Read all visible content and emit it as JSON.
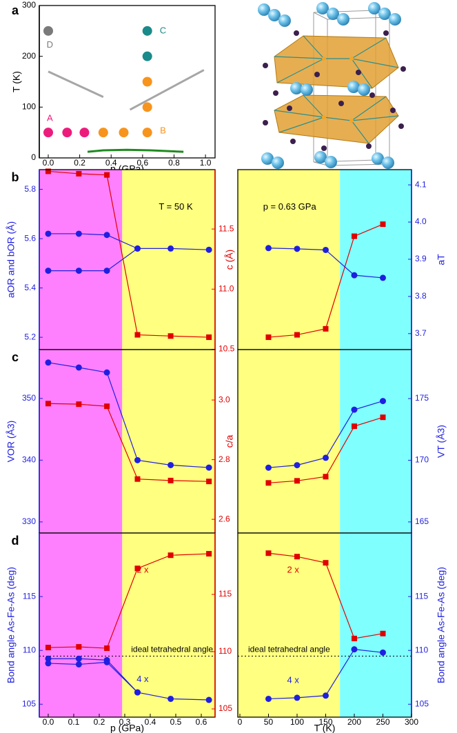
{
  "chart_data": [
    {
      "type": "scatter",
      "label": "a",
      "xlabel": "p (GPa)",
      "ylabel": "T (K)",
      "xlim": [
        -0.057,
        1.061
      ],
      "ylim": [
        0,
        300
      ],
      "xticks": [
        {
          "value": 0,
          "label": "0.0"
        },
        0.2,
        0.4,
        0.6,
        0.8,
        {
          "value": 1,
          "label": "1.0"
        }
      ],
      "yticks": [
        0,
        100,
        200,
        300
      ],
      "axis_colors": {
        "y": "#000000"
      },
      "marker_size": 7,
      "series": [
        {
          "color": "#ec1c7c",
          "x": [
            0,
            0.12,
            0.23
          ],
          "values": [
            50,
            50,
            50
          ]
        },
        {
          "color": "#f7941d",
          "x": [
            0.35,
            0.48,
            0.63,
            0.63,
            0.63
          ],
          "values": [
            50,
            50,
            50,
            100,
            150
          ]
        },
        {
          "color": "#1a8a8a",
          "x": [
            0.63,
            0.63
          ],
          "values": [
            200,
            250
          ]
        },
        {
          "color": "#7a7a7a",
          "x": [
            0
          ],
          "values": [
            250
          ]
        }
      ],
      "boundaries": [
        {
          "color": "#a6a6a6",
          "x": [
            0,
            0.35
          ],
          "y": [
            170,
            120
          ]
        },
        {
          "color": "#a6a6a6",
          "x": [
            0.52,
            0.99
          ],
          "y": [
            95,
            173
          ]
        },
        {
          "color": "#1f8a1f",
          "x": [
            0.25,
            0.35,
            0.5,
            0.65,
            0.86
          ],
          "y": [
            12,
            15,
            16,
            15,
            12
          ]
        }
      ],
      "annotations": [
        {
          "text": "A",
          "x": 0.01,
          "y": 77,
          "color": "#ec1c7c"
        },
        {
          "text": "B",
          "x": 0.73,
          "y": 53,
          "color": "#f7941d"
        },
        {
          "text": "C",
          "x": 0.73,
          "y": 250,
          "color": "#1a8a8a"
        },
        {
          "text": "D",
          "x": 0.01,
          "y": 222,
          "color": "#7a7a7a"
        }
      ]
    },
    {
      "type": "line",
      "label": "b",
      "xlim": [
        -0.035,
        0.654
      ],
      "x": [
        0,
        0.12,
        0.23,
        0.35,
        0.48,
        0.63
      ],
      "ylim": [
        5.15,
        5.88
      ],
      "yticks": [
        5.2,
        5.4,
        5.6,
        5.8
      ],
      "ylabel": "aOR and bOR (Å)",
      "y2lim": [
        10.497,
        11.994
      ],
      "y2ticks": [
        10.5,
        {
          "value": 11,
          "label": "11.0"
        },
        11.5
      ],
      "y2label": "c (Å)",
      "axis_colors": {
        "y": "#1f1fe0",
        "y2": "#e00000"
      },
      "bands": [
        {
          "from": -0.035,
          "to": 0.29,
          "color": "#ff80ff"
        },
        {
          "from": 0.29,
          "to": 0.654,
          "color": "#ffff80"
        }
      ],
      "series": [
        {
          "color": "#e00000",
          "marker": "square",
          "axis": "y2",
          "values": [
            11.98,
            11.96,
            11.95,
            10.62,
            10.61,
            10.6
          ]
        },
        {
          "color": "#1f1fe0",
          "marker": "circle",
          "values": [
            5.62,
            5.62,
            5.615,
            5.56,
            5.56,
            5.555
          ]
        },
        {
          "color": "#1f1fe0",
          "marker": "circle",
          "values": [
            5.47,
            5.47,
            5.47,
            5.56,
            null,
            null
          ]
        }
      ],
      "annotations": [
        {
          "text": "T = 50 K",
          "x": 0.5,
          "y": 5.728,
          "color": "#000000"
        }
      ]
    },
    {
      "type": "line",
      "xlim": [
        -3.6,
        300
      ],
      "x": [
        50,
        100,
        150,
        200,
        250
      ],
      "ylim": [
        10.497,
        11.994
      ],
      "y2lim": [
        3.657,
        4.141
      ],
      "y2ticks": [
        3.7,
        3.8,
        3.9,
        {
          "value": 4,
          "label": "4.0"
        },
        4.1
      ],
      "y2label": "aT",
      "axis_colors": {
        "y": "#e00000",
        "y2": "#1f1fe0"
      },
      "bands": [
        {
          "from": -3.6,
          "to": 175,
          "color": "#ffff80"
        },
        {
          "from": 175,
          "to": 300,
          "color": "#80ffff"
        }
      ],
      "series": [
        {
          "color": "#e00000",
          "marker": "square",
          "values": [
            10.6,
            10.62,
            10.67,
            11.44,
            11.54
          ]
        },
        {
          "color": "#1f1fe0",
          "marker": "circle",
          "axis": "y2",
          "values": [
            3.93,
            3.928,
            3.925,
            3.857,
            3.85
          ]
        }
      ],
      "annotations": [
        {
          "text": "p = 0.63 GPa",
          "x": 87,
          "y": 11.68,
          "color": "#000000"
        }
      ]
    },
    {
      "type": "line",
      "label": "c",
      "xlim": [
        -0.035,
        0.654
      ],
      "x": [
        0,
        0.12,
        0.23,
        0.35,
        0.48,
        0.63
      ],
      "ylim": [
        328.2,
        357.9
      ],
      "yticks": [
        330,
        340,
        350
      ],
      "ylabel": "VOR (Å3)",
      "y2lim": [
        2.554,
        3.169
      ],
      "y2ticks": [
        2.6,
        2.8,
        {
          "value": 3,
          "label": "3.0"
        }
      ],
      "y2label": "c/a",
      "axis_colors": {
        "y": "#1f1fe0",
        "y2": "#e00000"
      },
      "bands": [
        {
          "from": -0.035,
          "to": 0.29,
          "color": "#ff80ff"
        },
        {
          "from": 0.29,
          "to": 0.654,
          "color": "#ffff80"
        }
      ],
      "series": [
        {
          "color": "#e00000",
          "marker": "square",
          "axis": "y2",
          "values": [
            2.988,
            2.986,
            2.979,
            2.735,
            2.73,
            2.727
          ]
        },
        {
          "color": "#1f1fe0",
          "marker": "circle",
          "values": [
            355.8,
            355,
            354.2,
            340,
            339.2,
            338.8
          ]
        }
      ]
    },
    {
      "type": "line",
      "xlim": [
        -3.6,
        300
      ],
      "x": [
        50,
        100,
        150,
        200,
        250
      ],
      "ylim": [
        2.554,
        3.169
      ],
      "y2lim": [
        164.1,
        178.97
      ],
      "y2ticks": [
        165,
        170,
        175
      ],
      "y2label": "VT (Å3)",
      "axis_colors": {
        "y": "#e00000",
        "y2": "#1f1fe0"
      },
      "bands": [
        {
          "from": -3.6,
          "to": 175,
          "color": "#ffff80"
        },
        {
          "from": 175,
          "to": 300,
          "color": "#80ffff"
        }
      ],
      "series": [
        {
          "color": "#e00000",
          "marker": "square",
          "values": [
            2.722,
            2.729,
            2.743,
            2.912,
            2.942
          ]
        },
        {
          "color": "#1f1fe0",
          "marker": "circle",
          "axis": "y2",
          "values": [
            169.4,
            169.6,
            170.2,
            174.1,
            174.8
          ]
        }
      ]
    },
    {
      "type": "line",
      "label": "d",
      "xlabel": "p (GPa)",
      "xlim": [
        -0.035,
        0.654
      ],
      "x": [
        0,
        0.12,
        0.23,
        0.35,
        0.48,
        0.63
      ],
      "xticks": [
        {
          "value": 0,
          "label": "0.0"
        },
        0.1,
        0.2,
        0.3,
        0.4,
        0.5,
        0.6
      ],
      "ylim": [
        103.8,
        120.9
      ],
      "yticks": [
        105,
        110,
        115
      ],
      "ylabel": "Bond angle As-Fe-As (deg)",
      "y2lim": [
        104.28,
        120.36
      ],
      "y2ticks": [
        105,
        110,
        115
      ],
      "axis_colors": {
        "y": "#1f1fe0",
        "y2": "#e00000"
      },
      "bands": [
        {
          "from": -0.035,
          "to": 0.29,
          "color": "#ff80ff"
        },
        {
          "from": 0.29,
          "to": 0.654,
          "color": "#ffff80"
        }
      ],
      "series": [
        {
          "color": "#e00000",
          "marker": "square",
          "axis": "y2",
          "values": [
            110.36,
            110.42,
            110.3,
            117.27,
            118.42,
            118.55
          ]
        },
        {
          "color": "#1f1fe0",
          "marker": "circle",
          "values": [
            109.23,
            109.23,
            109.1,
            106.1,
            105.5,
            105.4
          ]
        },
        {
          "color": "#1f1fe0",
          "marker": "circle",
          "values": [
            108.8,
            108.7,
            108.9,
            106.1,
            null,
            null
          ]
        }
      ],
      "reference": {
        "value": 109.47,
        "label": "ideal tetrahedral angle"
      },
      "annotations": [
        {
          "text": "2 x",
          "x": 0.37,
          "y": 117.1,
          "axis": "y2",
          "color": "#e00000"
        },
        {
          "text": "4 x",
          "x": 0.37,
          "y": 107.3,
          "color": "#1f1fe0"
        }
      ]
    },
    {
      "type": "line",
      "xlabel": "T (K)",
      "xlim": [
        -3.6,
        300
      ],
      "x": [
        50,
        100,
        150,
        200,
        250
      ],
      "xticks": [
        0,
        50,
        100,
        150,
        200,
        250,
        300
      ],
      "ylim": [
        104.28,
        120.36
      ],
      "y2lim": [
        103.8,
        120.9
      ],
      "y2ticks": [
        105,
        110,
        115
      ],
      "y2label": "Bond angle As-Fe-As (deg)",
      "axis_colors": {
        "y": "#e00000",
        "y2": "#1f1fe0"
      },
      "bands": [
        {
          "from": -3.6,
          "to": 175,
          "color": "#ffff80"
        },
        {
          "from": 175,
          "to": 300,
          "color": "#80ffff"
        }
      ],
      "series": [
        {
          "color": "#e00000",
          "marker": "square",
          "values": [
            118.6,
            118.3,
            117.76,
            111.15,
            111.58
          ]
        },
        {
          "color": "#1f1fe0",
          "marker": "circle",
          "axis": "y2",
          "values": [
            105.5,
            105.6,
            105.8,
            110.1,
            109.8
          ]
        }
      ],
      "reference": {
        "value": 109.47,
        "label": "ideal tetrahedral angle",
        "axis": "y2"
      },
      "annotations": [
        {
          "text": "2 x",
          "x": 93,
          "y": 117.1,
          "color": "#e00000"
        },
        {
          "text": "4 x",
          "x": 93,
          "y": 107.2,
          "axis": "y2",
          "color": "#1f1fe0"
        }
      ]
    }
  ]
}
